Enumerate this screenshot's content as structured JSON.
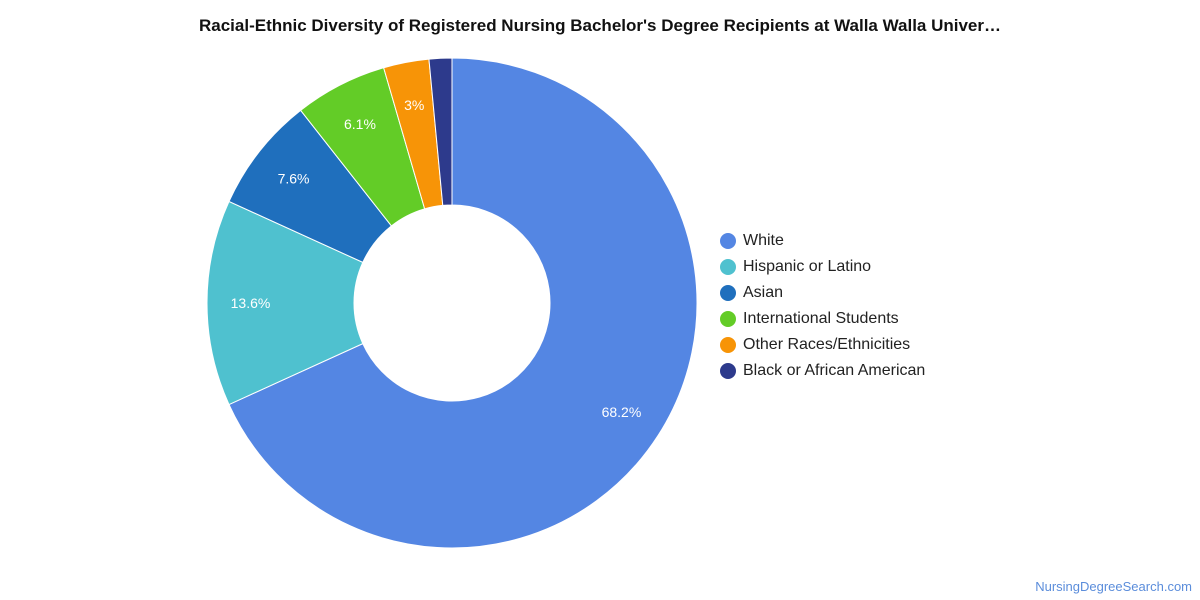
{
  "chart_data": {
    "type": "pie",
    "title": "Racial-Ethnic Diversity of Registered Nursing Bachelor's Degree Recipients at Walla Walla Univer…",
    "series": [
      {
        "name": "White",
        "value": 68.2,
        "label": "68.2%",
        "color": "#5486e3"
      },
      {
        "name": "Hispanic or Latino",
        "value": 13.6,
        "label": "13.6%",
        "color": "#4fc1cf"
      },
      {
        "name": "Asian",
        "value": 7.6,
        "label": "7.6%",
        "color": "#1f6fbd"
      },
      {
        "name": "International Students",
        "value": 6.1,
        "label": "6.1%",
        "color": "#63cc27"
      },
      {
        "name": "Other Races/Ethnicities",
        "value": 3.0,
        "label": "3%",
        "color": "#f79407"
      },
      {
        "name": "Black or African American",
        "value": 1.5,
        "label": "",
        "color": "#2d3a8c"
      }
    ],
    "legend": "right"
  },
  "footer": {
    "source": "NursingDegreeSearch.com"
  }
}
